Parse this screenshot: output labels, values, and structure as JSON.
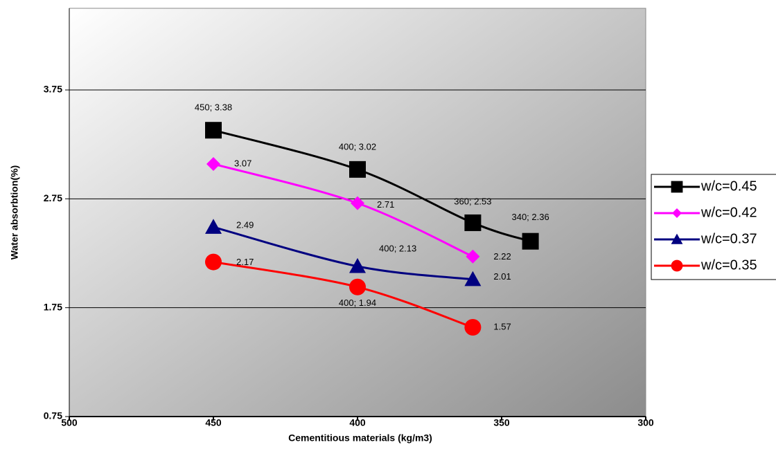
{
  "chart_data": {
    "type": "line",
    "xlabel": "Cementitious materials (kg/m3)",
    "ylabel": "Water absorbtion(%)",
    "xlim": [
      500,
      300
    ],
    "xticks": [
      500,
      450,
      400,
      350,
      300
    ],
    "ylim": [
      0.75,
      4.5
    ],
    "yticks": [
      0.75,
      1.75,
      2.75,
      3.75
    ],
    "grid": true,
    "legend": "right",
    "series": [
      {
        "name": "w/c=0.45",
        "color": "#000000",
        "marker": "square",
        "x": [
          450,
          400,
          360,
          340
        ],
        "values": [
          3.38,
          3.02,
          2.53,
          2.36
        ],
        "value_labels": [
          "450; 3.38",
          "400; 3.02",
          "360; 2.53",
          "340; 2.36"
        ]
      },
      {
        "name": "w/c=0.42",
        "color": "#ff00ff",
        "marker": "diamond",
        "x": [
          450,
          400,
          360
        ],
        "values": [
          3.07,
          2.71,
          2.22
        ],
        "value_labels": [
          "3.07",
          "2.71",
          "2.22"
        ]
      },
      {
        "name": "w/c=0.37",
        "color": "#000080",
        "marker": "triangle",
        "x": [
          450,
          400,
          360
        ],
        "values": [
          2.49,
          2.13,
          2.01
        ],
        "value_labels": [
          "2.49",
          "400; 2.13",
          "2.01"
        ]
      },
      {
        "name": "w/c=0.35",
        "color": "#ff0000",
        "marker": "circle",
        "x": [
          450,
          400,
          360
        ],
        "values": [
          2.17,
          1.94,
          1.57
        ],
        "value_labels": [
          "2.17",
          "400; 1.94",
          "1.57"
        ]
      }
    ]
  }
}
